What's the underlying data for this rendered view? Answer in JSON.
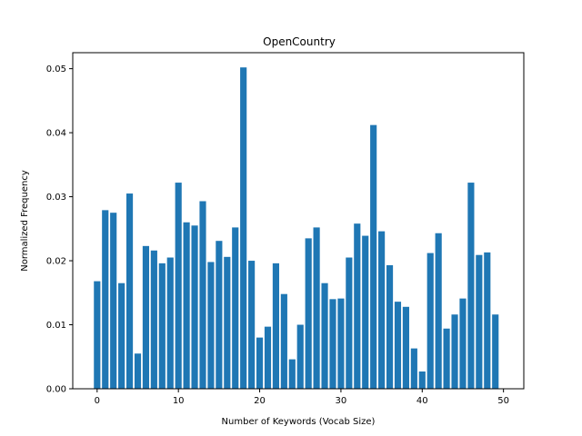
{
  "chart_data": {
    "type": "bar",
    "title": "OpenCountry",
    "xlabel": "Number of Keywords (Vocab Size)",
    "ylabel": "Normalized Frequency",
    "xlim": [
      -3,
      52.5
    ],
    "ylim": [
      0,
      0.0525
    ],
    "xticks": [
      0,
      10,
      20,
      30,
      40,
      50
    ],
    "yticks": [
      0.0,
      0.01,
      0.02,
      0.03,
      0.04,
      0.05
    ],
    "ytick_labels": [
      "0.00",
      "0.01",
      "0.02",
      "0.03",
      "0.04",
      "0.05"
    ],
    "grid": false,
    "bar_color": "#1f77b4",
    "x": [
      0,
      1,
      2,
      3,
      4,
      5,
      6,
      7,
      8,
      9,
      10,
      11,
      12,
      13,
      14,
      15,
      16,
      17,
      18,
      19,
      20,
      21,
      22,
      23,
      24,
      25,
      26,
      27,
      28,
      29,
      30,
      31,
      32,
      33,
      34,
      35,
      36,
      37,
      38,
      39,
      40,
      41,
      42,
      43,
      44,
      45,
      46,
      47,
      48,
      49
    ],
    "values": [
      0.0168,
      0.0279,
      0.0275,
      0.0165,
      0.0305,
      0.0055,
      0.0223,
      0.0216,
      0.0196,
      0.0205,
      0.0322,
      0.026,
      0.0255,
      0.0293,
      0.0198,
      0.0231,
      0.0206,
      0.0252,
      0.0502,
      0.02,
      0.008,
      0.0097,
      0.0196,
      0.0148,
      0.0046,
      0.01,
      0.0235,
      0.0252,
      0.0165,
      0.014,
      0.0141,
      0.0205,
      0.0258,
      0.0239,
      0.0412,
      0.0246,
      0.0193,
      0.0136,
      0.0128,
      0.0063,
      0.0027,
      0.0212,
      0.0243,
      0.0094,
      0.0116,
      0.0141,
      0.0322,
      0.0209,
      0.0213,
      0.0116
    ]
  }
}
